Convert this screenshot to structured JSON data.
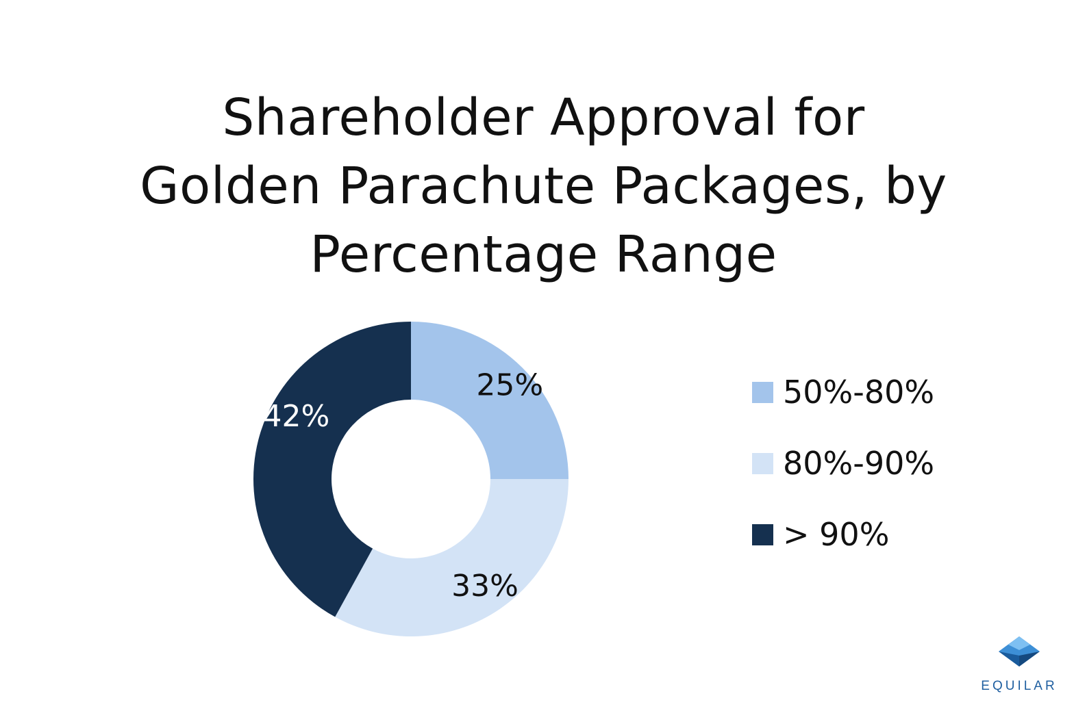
{
  "chart_data": {
    "type": "pie",
    "variant": "donut",
    "title": "Shareholder Approval for Golden Parachute Packages, by Percentage Range",
    "title_lines": [
      "Shareholder Approval for",
      "Golden Parachute Packages, by",
      "Percentage Range"
    ],
    "slices": [
      {
        "label": "50%-80%",
        "value": 25,
        "value_label": "25%",
        "color": "#a3c4eb",
        "label_color": "#111111"
      },
      {
        "label": "80%-90%",
        "value": 33,
        "value_label": "33%",
        "color": "#d3e3f6",
        "label_color": "#111111"
      },
      {
        "label": "> 90%",
        "value": 42,
        "value_label": "42%",
        "color": "#15304f",
        "label_color": "#ffffff"
      }
    ],
    "legend_position": "right"
  },
  "logo": {
    "text": "EQUILAR",
    "colors": [
      "#1a5b9c",
      "#3d8fd6",
      "#7ec0f2"
    ]
  }
}
